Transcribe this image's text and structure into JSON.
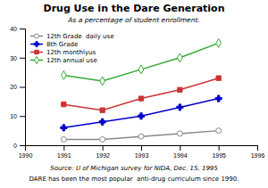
{
  "chart_data": {
    "type": "line",
    "title": "Drug Use in the Dare Generation",
    "subtitle": "As a percentage of student enrollment.",
    "annotations": [
      "Source: U of Michigan survey for NIDA, Dec. 15, 1995",
      "DARE has been the most popular  anti-drug curriculum since 1990."
    ],
    "x": [
      1991,
      1992,
      1993,
      1994,
      1995
    ],
    "series": [
      {
        "name": "12th Grade  daily use",
        "color": "#888888",
        "marker": "circle-open",
        "values": [
          2,
          2,
          3,
          4,
          5
        ]
      },
      {
        "name": "8th Grade",
        "color": "#0000cc",
        "marker": "plus",
        "values": [
          6,
          8,
          10,
          13,
          16
        ]
      },
      {
        "name": "12th monthlyus",
        "color": "#cc3333",
        "marker": "square",
        "values": [
          14,
          12,
          16,
          19,
          23
        ]
      },
      {
        "name": "12th annual use",
        "color": "#33aa33",
        "marker": "diamond-open",
        "values": [
          24,
          22,
          26,
          30,
          35
        ]
      }
    ],
    "xlim": [
      1990,
      1996
    ],
    "ylim": [
      0,
      40
    ],
    "xticks": [
      1990,
      1991,
      1992,
      1993,
      1994,
      1995,
      1996
    ],
    "yticks": [
      0,
      10,
      20,
      30,
      40
    ],
    "legend": "upper left",
    "grid": false
  }
}
